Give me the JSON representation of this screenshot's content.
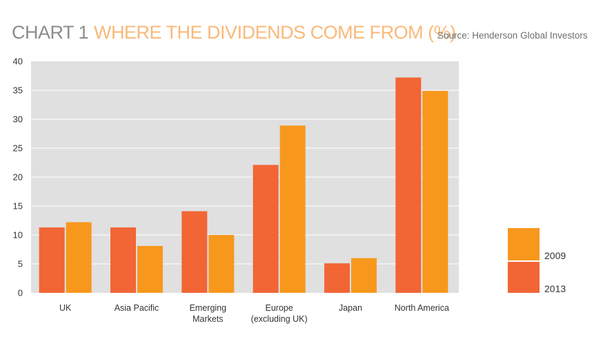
{
  "header": {
    "chart_label": "CHART 1",
    "title": "WHERE THE DIVIDENDS COME FROM (%)",
    "source": "Source: Henderson Global Investors"
  },
  "colors": {
    "plot_background": "#e0e0e0",
    "grid": "#ffffff",
    "series_2013": "#f26535",
    "series_2009": "#f7981d",
    "title_accent": "#f9b97a",
    "chart_label_gray": "#8c8c8c"
  },
  "chart_data": {
    "type": "bar",
    "title": "WHERE THE DIVIDENDS COME FROM (%)",
    "categories": [
      [
        "UK"
      ],
      [
        "Asia Pacific"
      ],
      [
        "Emerging",
        "Markets"
      ],
      [
        "Europe",
        "(excluding UK)"
      ],
      [
        "Japan"
      ],
      [
        "North America"
      ]
    ],
    "series": [
      {
        "name": "2013",
        "color": "#f26535",
        "values": [
          11.3,
          11.3,
          14.1,
          22.1,
          5.1,
          37.2
        ]
      },
      {
        "name": "2009",
        "color": "#f7981d",
        "values": [
          12.2,
          8.1,
          10.0,
          28.9,
          6.0,
          34.9
        ]
      }
    ],
    "ylim": [
      0,
      40
    ],
    "yticks": [
      "0",
      "5",
      "10",
      "15",
      "20",
      "25",
      "30",
      "35",
      "40"
    ],
    "xlabel": "",
    "ylabel": "",
    "grid": true,
    "legend": {
      "position": "right",
      "items": [
        "2009",
        "2013"
      ]
    }
  }
}
